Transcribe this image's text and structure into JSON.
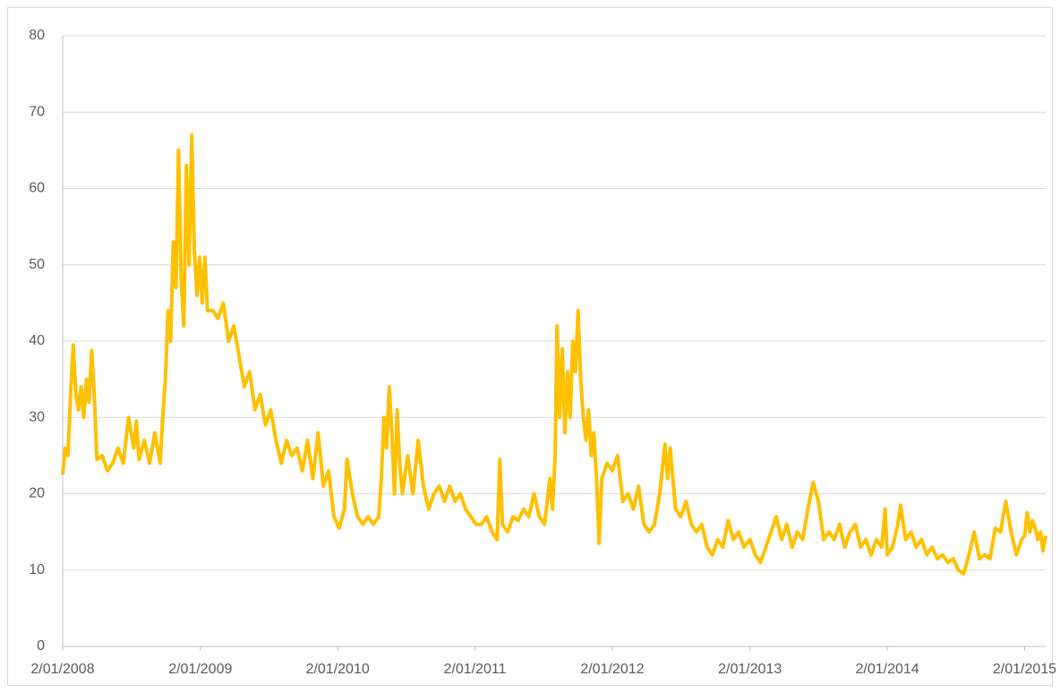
{
  "chart_data": {
    "type": "line",
    "x": [
      "2/01/2008",
      "9/01/2008",
      "16/01/2008",
      "23/01/2008",
      "30/01/2008",
      "6/02/2008",
      "13/02/2008",
      "20/02/2008",
      "27/02/2008",
      "5/03/2008",
      "12/03/2008",
      "19/03/2008",
      "26/03/2008",
      "2/04/2008",
      "16/04/2008",
      "30/04/2008",
      "14/05/2008",
      "28/05/2008",
      "11/06/2008",
      "25/06/2008",
      "9/07/2008",
      "16/07/2008",
      "23/07/2008",
      "6/08/2008",
      "20/08/2008",
      "3/09/2008",
      "17/09/2008",
      "24/09/2008",
      "1/10/2008",
      "8/10/2008",
      "15/10/2008",
      "22/10/2008",
      "29/10/2008",
      "5/11/2008",
      "12/11/2008",
      "19/11/2008",
      "26/11/2008",
      "3/12/2008",
      "10/12/2008",
      "17/12/2008",
      "24/12/2008",
      "31/12/2008",
      "7/01/2009",
      "14/01/2009",
      "21/01/2009",
      "4/02/2009",
      "18/02/2009",
      "4/03/2009",
      "18/03/2009",
      "1/04/2009",
      "15/04/2009",
      "29/04/2009",
      "13/05/2009",
      "27/05/2009",
      "10/06/2009",
      "24/06/2009",
      "8/07/2009",
      "22/07/2009",
      "5/08/2009",
      "19/08/2009",
      "2/09/2009",
      "16/09/2009",
      "30/09/2009",
      "14/10/2009",
      "28/10/2009",
      "11/11/2009",
      "25/11/2009",
      "9/12/2009",
      "23/12/2009",
      "6/01/2010",
      "20/01/2010",
      "27/01/2010",
      "10/02/2010",
      "24/02/2010",
      "10/03/2010",
      "24/03/2010",
      "7/04/2010",
      "21/04/2010",
      "28/04/2010",
      "5/05/2010",
      "12/05/2010",
      "19/05/2010",
      "26/05/2010",
      "2/06/2010",
      "9/06/2010",
      "16/06/2010",
      "23/06/2010",
      "7/07/2010",
      "21/07/2010",
      "4/08/2010",
      "18/08/2010",
      "1/09/2010",
      "15/09/2010",
      "29/09/2010",
      "13/10/2010",
      "27/10/2010",
      "10/11/2010",
      "24/11/2010",
      "8/12/2010",
      "22/12/2010",
      "5/01/2011",
      "19/01/2011",
      "2/02/2011",
      "16/02/2011",
      "2/03/2011",
      "9/03/2011",
      "16/03/2011",
      "30/03/2011",
      "13/04/2011",
      "27/04/2011",
      "11/05/2011",
      "25/05/2011",
      "8/06/2011",
      "22/06/2011",
      "6/07/2011",
      "20/07/2011",
      "27/07/2011",
      "3/08/2011",
      "8/08/2011",
      "15/08/2011",
      "22/08/2011",
      "29/08/2011",
      "5/09/2011",
      "12/09/2011",
      "19/09/2011",
      "26/09/2011",
      "3/10/2011",
      "10/10/2011",
      "17/10/2011",
      "24/10/2011",
      "31/10/2011",
      "7/11/2011",
      "14/11/2011",
      "21/11/2011",
      "28/11/2011",
      "5/12/2011",
      "19/12/2011",
      "2/01/2012",
      "16/01/2012",
      "30/01/2012",
      "13/02/2012",
      "27/02/2012",
      "12/03/2012",
      "26/03/2012",
      "9/04/2012",
      "23/04/2012",
      "7/05/2012",
      "21/05/2012",
      "28/05/2012",
      "4/06/2012",
      "18/06/2012",
      "2/07/2012",
      "16/07/2012",
      "30/07/2012",
      "13/08/2012",
      "27/08/2012",
      "10/09/2012",
      "24/09/2012",
      "8/10/2012",
      "22/10/2012",
      "5/11/2012",
      "19/11/2012",
      "3/12/2012",
      "17/12/2012",
      "2/01/2013",
      "16/01/2013",
      "30/01/2013",
      "13/02/2013",
      "27/02/2013",
      "13/03/2013",
      "27/03/2013",
      "10/04/2013",
      "24/04/2013",
      "8/05/2013",
      "22/05/2013",
      "5/06/2013",
      "19/06/2013",
      "3/07/2013",
      "17/07/2013",
      "31/07/2013",
      "14/08/2013",
      "28/08/2013",
      "11/09/2013",
      "25/09/2013",
      "9/10/2013",
      "23/10/2013",
      "6/11/2013",
      "20/11/2013",
      "4/12/2013",
      "18/12/2013",
      "27/12/2013",
      "2/01/2014",
      "16/01/2014",
      "30/01/2014",
      "6/02/2014",
      "20/02/2014",
      "6/03/2014",
      "20/03/2014",
      "3/04/2014",
      "17/04/2014",
      "1/05/2014",
      "15/05/2014",
      "29/05/2014",
      "12/06/2014",
      "26/06/2014",
      "10/07/2014",
      "24/07/2014",
      "7/08/2014",
      "21/08/2014",
      "4/09/2014",
      "18/09/2014",
      "2/10/2014",
      "16/10/2014",
      "30/10/2014",
      "13/11/2014",
      "27/11/2014",
      "11/12/2014",
      "25/12/2014",
      "2/01/2015",
      "9/01/2015",
      "16/01/2015",
      "23/01/2015",
      "30/01/2015",
      "6/02/2015",
      "13/02/2015",
      "20/02/2015",
      "27/02/2015"
    ],
    "series": [
      {
        "color": "#ffc000",
        "values": [
          22.5,
          26,
          25,
          33,
          39.5,
          33,
          31,
          34,
          30,
          35,
          32,
          38.8,
          33,
          24.5,
          25,
          23,
          24,
          26,
          24,
          30,
          26,
          29.5,
          24.5,
          27,
          24,
          28,
          24,
          30,
          35,
          44,
          40,
          53,
          47,
          65,
          48,
          42,
          63,
          50,
          67,
          52,
          46,
          51,
          45,
          51,
          44,
          44,
          43,
          45,
          40,
          42,
          38,
          34,
          36,
          31,
          33,
          29,
          31,
          27,
          24,
          27,
          25,
          26,
          23,
          27,
          22,
          28,
          21,
          23,
          17,
          15.5,
          18,
          24.5,
          20,
          17,
          16,
          17,
          16,
          17,
          22,
          30,
          26,
          34,
          28,
          20,
          31,
          24,
          20,
          25,
          20,
          27,
          21,
          18,
          20,
          21,
          19,
          21,
          19,
          20,
          18,
          17,
          16,
          16,
          17,
          15,
          14,
          24.5,
          16,
          15,
          17,
          16.5,
          18,
          17,
          20,
          17,
          16,
          22,
          18,
          25,
          42,
          30,
          39,
          28,
          36,
          30,
          40,
          36,
          44,
          35,
          30,
          27,
          31,
          25,
          28,
          22,
          13.5,
          22,
          24,
          23,
          25,
          19,
          20,
          18,
          21,
          16,
          15,
          16,
          20,
          26.5,
          22,
          26,
          18,
          17,
          19,
          16,
          15,
          16,
          13,
          12,
          14,
          13,
          16.5,
          14,
          15,
          13,
          14,
          12,
          11,
          13,
          15,
          17,
          14,
          16,
          13,
          15,
          14,
          18,
          21.5,
          19,
          14,
          15,
          14,
          16,
          13,
          15,
          16,
          13,
          14,
          12,
          14,
          13,
          18,
          12,
          13,
          16,
          18.5,
          14,
          15,
          13,
          14,
          12,
          13,
          11.5,
          12,
          11,
          11.5,
          10,
          9.5,
          12,
          15,
          11.5,
          12,
          11.5,
          15.5,
          15,
          19,
          15,
          12,
          14,
          14.5,
          17.5,
          15,
          16.5,
          15.5,
          14,
          15,
          12.5,
          14.5
        ]
      }
    ],
    "xlim": [
      "2/01/2008",
      "27/02/2015"
    ],
    "xticks": [
      "2/01/2008",
      "2/01/2009",
      "2/01/2010",
      "2/01/2011",
      "2/01/2012",
      "2/01/2013",
      "2/01/2014",
      "2/01/2015"
    ],
    "ylim": [
      0,
      80
    ],
    "yticks": [
      0,
      10,
      20,
      30,
      40,
      50,
      60,
      70,
      80
    ],
    "grid": true
  }
}
